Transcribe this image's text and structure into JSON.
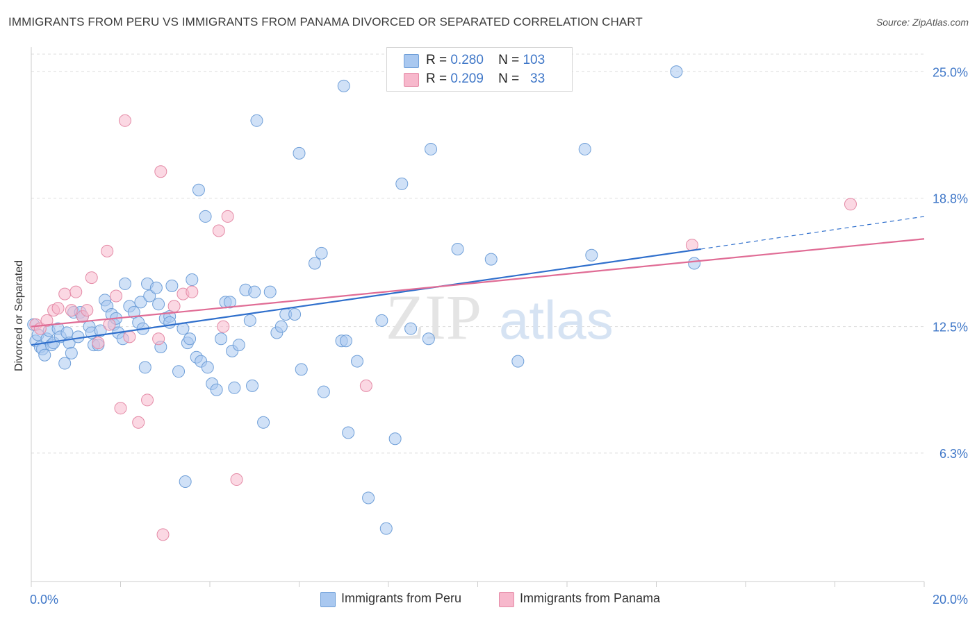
{
  "header": {
    "title": "IMMIGRANTS FROM PERU VS IMMIGRANTS FROM PANAMA DIVORCED OR SEPARATED CORRELATION CHART",
    "source": "Source: ZipAtlas.com"
  },
  "watermark": {
    "zip": "ZIP",
    "atlas": "atlas"
  },
  "legend": {
    "rows": [
      {
        "r_label": "R =",
        "r_value": "0.280",
        "n_label": "N =",
        "n_value": "103",
        "color": "#a9c8f0",
        "border": "#6f9fd8"
      },
      {
        "r_label": "R =",
        "r_value": "0.209",
        "n_label": "N =",
        "n_value": "33",
        "color": "#f7b8cc",
        "border": "#e48aa6"
      }
    ]
  },
  "chart_data": {
    "type": "scatter",
    "title": "IMMIGRANTS FROM PERU VS IMMIGRANTS FROM PANAMA DIVORCED OR SEPARATED CORRELATION CHART",
    "xlabel": "",
    "ylabel": "Divorced or Separated",
    "xlim": [
      0,
      20
    ],
    "ylim": [
      0,
      26.2
    ],
    "x_tick_labels": [
      "0.0%",
      "20.0%"
    ],
    "y_ticks": [
      6.3,
      12.5,
      18.8,
      25.0
    ],
    "y_tick_labels": [
      "6.3%",
      "12.5%",
      "18.8%",
      "25.0%"
    ],
    "grid": true,
    "legend_placement": "bottom-center",
    "series": [
      {
        "name": "Immigrants from Peru",
        "color": "#a9c8f0",
        "stroke": "#6f9fd8",
        "trend_color": "#2f6fcc",
        "trend": {
          "x0": 0,
          "y0": 11.6,
          "x1": 15.0,
          "y1": 16.3,
          "dash_to_x": 20.0,
          "dash_to_y": 17.9
        },
        "points": [
          [
            0.05,
            12.6
          ],
          [
            0.1,
            11.8
          ],
          [
            0.15,
            12.1
          ],
          [
            0.2,
            11.5
          ],
          [
            0.25,
            11.4
          ],
          [
            0.3,
            11.1
          ],
          [
            0.35,
            11.9
          ],
          [
            0.4,
            12.3
          ],
          [
            0.45,
            11.6
          ],
          [
            0.5,
            11.7
          ],
          [
            0.6,
            12.4
          ],
          [
            0.65,
            12.0
          ],
          [
            0.75,
            10.7
          ],
          [
            0.8,
            12.2
          ],
          [
            0.85,
            11.7
          ],
          [
            0.9,
            11.2
          ],
          [
            0.95,
            13.2
          ],
          [
            1.05,
            12.0
          ],
          [
            1.1,
            13.2
          ],
          [
            1.15,
            13.0
          ],
          [
            1.3,
            12.5
          ],
          [
            1.35,
            12.2
          ],
          [
            1.4,
            11.6
          ],
          [
            1.5,
            11.6
          ],
          [
            1.55,
            12.3
          ],
          [
            1.65,
            13.8
          ],
          [
            1.7,
            13.5
          ],
          [
            1.8,
            13.1
          ],
          [
            1.85,
            12.6
          ],
          [
            1.9,
            12.9
          ],
          [
            1.95,
            12.2
          ],
          [
            2.05,
            11.9
          ],
          [
            2.1,
            14.6
          ],
          [
            2.2,
            13.5
          ],
          [
            2.3,
            13.2
          ],
          [
            2.4,
            12.7
          ],
          [
            2.45,
            13.7
          ],
          [
            2.5,
            12.4
          ],
          [
            2.55,
            10.5
          ],
          [
            2.6,
            14.6
          ],
          [
            2.65,
            14.0
          ],
          [
            2.8,
            14.4
          ],
          [
            2.85,
            13.6
          ],
          [
            2.9,
            11.5
          ],
          [
            3.0,
            12.9
          ],
          [
            3.1,
            13.0
          ],
          [
            3.1,
            12.7
          ],
          [
            3.15,
            14.5
          ],
          [
            3.3,
            10.3
          ],
          [
            3.4,
            12.4
          ],
          [
            3.45,
            4.9
          ],
          [
            3.5,
            11.7
          ],
          [
            3.55,
            11.9
          ],
          [
            3.6,
            14.8
          ],
          [
            3.7,
            11.0
          ],
          [
            3.75,
            19.2
          ],
          [
            3.8,
            10.8
          ],
          [
            3.9,
            17.9
          ],
          [
            3.95,
            10.5
          ],
          [
            4.05,
            9.7
          ],
          [
            4.15,
            9.4
          ],
          [
            4.25,
            11.9
          ],
          [
            4.35,
            13.7
          ],
          [
            4.45,
            13.7
          ],
          [
            4.5,
            11.3
          ],
          [
            4.55,
            9.5
          ],
          [
            4.65,
            11.6
          ],
          [
            4.8,
            14.3
          ],
          [
            4.9,
            12.8
          ],
          [
            4.95,
            9.6
          ],
          [
            5.0,
            14.2
          ],
          [
            5.05,
            22.6
          ],
          [
            5.2,
            7.8
          ],
          [
            5.35,
            14.2
          ],
          [
            5.5,
            12.2
          ],
          [
            5.6,
            12.5
          ],
          [
            5.7,
            13.1
          ],
          [
            5.9,
            13.1
          ],
          [
            6.0,
            21.0
          ],
          [
            6.05,
            10.4
          ],
          [
            6.35,
            15.6
          ],
          [
            6.5,
            16.1
          ],
          [
            6.55,
            9.3
          ],
          [
            6.95,
            11.8
          ],
          [
            7.05,
            11.8
          ],
          [
            7.0,
            24.3
          ],
          [
            7.1,
            7.3
          ],
          [
            7.3,
            10.8
          ],
          [
            7.55,
            4.1
          ],
          [
            7.85,
            12.8
          ],
          [
            7.95,
            2.6
          ],
          [
            8.15,
            7.0
          ],
          [
            8.3,
            19.5
          ],
          [
            8.5,
            12.4
          ],
          [
            8.9,
            11.9
          ],
          [
            8.95,
            21.2
          ],
          [
            9.55,
            16.3
          ],
          [
            10.3,
            15.8
          ],
          [
            10.9,
            10.8
          ],
          [
            12.4,
            21.2
          ],
          [
            12.55,
            16.0
          ],
          [
            14.45,
            25.0
          ],
          [
            14.85,
            15.6
          ]
        ]
      },
      {
        "name": "Immigrants from Panama",
        "color": "#f7b8cc",
        "stroke": "#e48aa6",
        "trend_color": "#e06c95",
        "trend": {
          "x0": 0,
          "y0": 12.5,
          "x1": 20.0,
          "y1": 16.8
        },
        "points": [
          [
            0.1,
            12.6
          ],
          [
            0.2,
            12.4
          ],
          [
            0.35,
            12.8
          ],
          [
            0.5,
            13.3
          ],
          [
            0.6,
            13.4
          ],
          [
            0.75,
            14.1
          ],
          [
            0.9,
            13.3
          ],
          [
            1.0,
            14.2
          ],
          [
            1.15,
            13.0
          ],
          [
            1.25,
            13.3
          ],
          [
            1.35,
            14.9
          ],
          [
            1.5,
            11.7
          ],
          [
            1.7,
            16.2
          ],
          [
            1.75,
            12.6
          ],
          [
            1.9,
            14.0
          ],
          [
            2.0,
            8.5
          ],
          [
            2.1,
            22.6
          ],
          [
            2.2,
            12.0
          ],
          [
            2.4,
            7.8
          ],
          [
            2.6,
            8.9
          ],
          [
            2.85,
            11.9
          ],
          [
            2.9,
            20.1
          ],
          [
            2.95,
            2.3
          ],
          [
            3.2,
            13.5
          ],
          [
            3.4,
            14.1
          ],
          [
            3.6,
            14.2
          ],
          [
            4.2,
            17.2
          ],
          [
            4.3,
            12.5
          ],
          [
            4.4,
            17.9
          ],
          [
            4.6,
            5.0
          ],
          [
            7.5,
            9.6
          ],
          [
            14.8,
            16.5
          ],
          [
            18.35,
            18.5
          ]
        ]
      }
    ]
  },
  "bottom_legend": {
    "items": [
      {
        "label": "Immigrants from Peru",
        "color": "#a9c8f0",
        "border": "#6f9fd8"
      },
      {
        "label": "Immigrants from Panama",
        "color": "#f7b8cc",
        "border": "#e48aa6"
      }
    ]
  }
}
